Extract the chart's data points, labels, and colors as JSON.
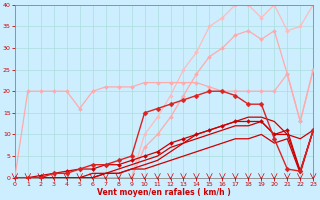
{
  "title": "",
  "xlabel": "Vent moyen/en rafales ( km/h )",
  "xlim": [
    0,
    23
  ],
  "ylim": [
    0,
    40
  ],
  "xticks": [
    0,
    1,
    2,
    3,
    4,
    5,
    6,
    7,
    8,
    9,
    10,
    11,
    12,
    13,
    14,
    15,
    16,
    17,
    18,
    19,
    20,
    21,
    22,
    23
  ],
  "yticks": [
    0,
    5,
    10,
    15,
    20,
    25,
    30,
    35,
    40
  ],
  "background_color": "#cceeff",
  "grid_color": "#aadddd",
  "lines": [
    {
      "x": [
        0,
        1,
        2,
        3,
        4,
        5,
        6,
        7,
        8,
        9,
        10,
        11,
        12,
        13,
        14,
        15,
        16,
        17,
        18,
        19,
        20,
        21,
        22,
        23
      ],
      "y": [
        0,
        0,
        0,
        0,
        0,
        0,
        0,
        0,
        0,
        0,
        10,
        14,
        19,
        25,
        29,
        35,
        37,
        40,
        40,
        37,
        40,
        34,
        35,
        40
      ],
      "color": "#ffbbbb",
      "lw": 0.9,
      "marker": "D",
      "ms": 2.0,
      "zorder": 2
    },
    {
      "x": [
        0,
        1,
        2,
        3,
        4,
        5,
        6,
        7,
        8,
        9,
        10,
        11,
        12,
        13,
        14,
        15,
        16,
        17,
        18,
        19,
        20,
        21,
        22,
        23
      ],
      "y": [
        0,
        0,
        0,
        0,
        0,
        0,
        0,
        0,
        0,
        0,
        7,
        10,
        14,
        19,
        24,
        28,
        30,
        33,
        34,
        32,
        34,
        24,
        13,
        25
      ],
      "color": "#ffaaaa",
      "lw": 0.9,
      "marker": "D",
      "ms": 2.0,
      "zorder": 2
    },
    {
      "x": [
        0,
        1,
        2,
        3,
        4,
        5,
        6,
        7,
        8,
        9,
        10,
        11,
        12,
        13,
        14,
        15,
        16,
        17,
        18,
        19,
        20,
        21,
        22,
        23
      ],
      "y": [
        0,
        20,
        20,
        20,
        20,
        16,
        20,
        21,
        21,
        21,
        22,
        22,
        22,
        22,
        22,
        21,
        20,
        20,
        20,
        20,
        20,
        24,
        13,
        25
      ],
      "color": "#ffaaaa",
      "lw": 0.9,
      "marker": "D",
      "ms": 2.0,
      "zorder": 3
    },
    {
      "x": [
        0,
        1,
        2,
        3,
        4,
        5,
        6,
        7,
        8,
        9,
        10,
        11,
        12,
        13,
        14,
        15,
        16,
        17,
        18,
        19,
        20,
        21,
        22,
        23
      ],
      "y": [
        0,
        0,
        0,
        1,
        1,
        2,
        3,
        3,
        4,
        5,
        15,
        16,
        17,
        18,
        19,
        20,
        20,
        19,
        17,
        17,
        9,
        2,
        1.5,
        11
      ],
      "color": "#dd2222",
      "lw": 1.0,
      "marker": "D",
      "ms": 2.5,
      "zorder": 6
    },
    {
      "x": [
        0,
        1,
        2,
        3,
        4,
        5,
        6,
        7,
        8,
        9,
        10,
        11,
        12,
        13,
        14,
        15,
        16,
        17,
        18,
        19,
        20,
        21,
        22,
        23
      ],
      "y": [
        0,
        0,
        0,
        0,
        0,
        0,
        0,
        1,
        1,
        2,
        3,
        4,
        6,
        8,
        10,
        11,
        12,
        13,
        14,
        14,
        13,
        10,
        9,
        11
      ],
      "color": "#cc0000",
      "lw": 0.9,
      "marker": null,
      "ms": 0,
      "zorder": 4
    },
    {
      "x": [
        0,
        1,
        2,
        3,
        4,
        5,
        6,
        7,
        8,
        9,
        10,
        11,
        12,
        13,
        14,
        15,
        16,
        17,
        18,
        19,
        20,
        21,
        22,
        23
      ],
      "y": [
        0,
        0,
        0,
        0,
        0,
        0,
        1,
        1,
        2,
        3,
        4,
        5,
        7,
        8,
        9,
        10,
        11,
        12,
        12,
        13,
        10,
        10,
        1.5,
        11
      ],
      "color": "#cc0000",
      "lw": 0.9,
      "marker": null,
      "ms": 0,
      "zorder": 4
    },
    {
      "x": [
        0,
        1,
        2,
        3,
        4,
        5,
        6,
        7,
        8,
        9,
        10,
        11,
        12,
        13,
        14,
        15,
        16,
        17,
        18,
        19,
        20,
        21,
        22,
        23
      ],
      "y": [
        0,
        0,
        0,
        0,
        0,
        0,
        0,
        1,
        1,
        2,
        2,
        3,
        4,
        5,
        6,
        7,
        8,
        9,
        9,
        10,
        8,
        9,
        1,
        11
      ],
      "color": "#cc0000",
      "lw": 0.9,
      "marker": null,
      "ms": 0,
      "zorder": 4
    },
    {
      "x": [
        0,
        1,
        2,
        3,
        4,
        5,
        6,
        7,
        8,
        9,
        10,
        11,
        12,
        13,
        14,
        15,
        16,
        17,
        18,
        19,
        20,
        21,
        22,
        23
      ],
      "y": [
        0,
        0,
        0.5,
        1,
        1.5,
        2,
        2,
        3,
        3,
        4,
        5,
        6,
        8,
        9,
        10,
        11,
        12,
        13,
        13,
        13,
        10,
        11,
        1.5,
        11
      ],
      "color": "#cc0000",
      "lw": 0.9,
      "marker": "D",
      "ms": 2.0,
      "zorder": 5
    }
  ],
  "tick_color": "#cc0000",
  "label_color": "#cc0000",
  "axis_color": "#888888"
}
